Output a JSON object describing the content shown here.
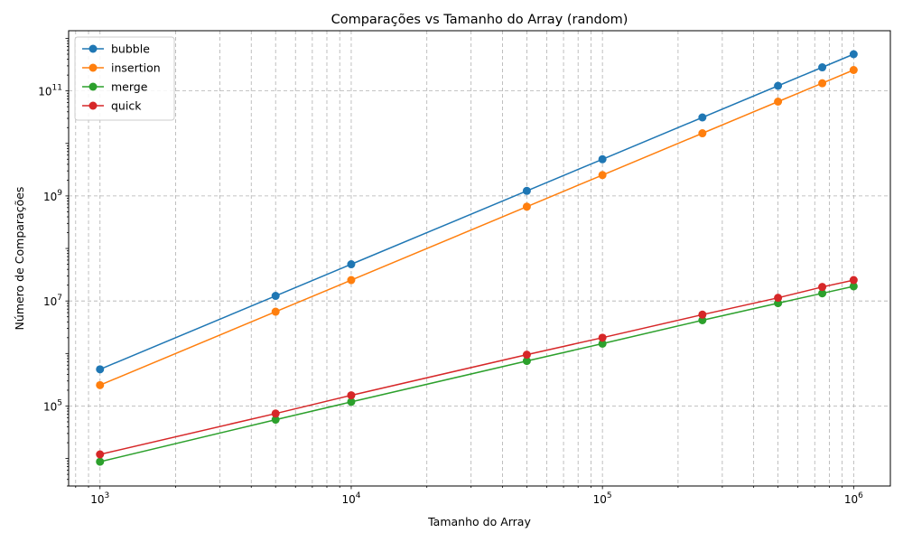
{
  "chart_data": {
    "type": "line",
    "title": "Comparações vs Tamanho do Array (random)",
    "xlabel": "Tamanho do Array",
    "ylabel": "Número de Comparações",
    "x_scale": "log",
    "y_scale": "log",
    "xlim": [
      750,
      1400000
    ],
    "ylim": [
      3000,
      1400000000000
    ],
    "x_ticks": [
      {
        "value": 1000,
        "base": "10",
        "exp": "3"
      },
      {
        "value": 10000,
        "base": "10",
        "exp": "4"
      },
      {
        "value": 100000,
        "base": "10",
        "exp": "5"
      },
      {
        "value": 1000000,
        "base": "10",
        "exp": "6"
      }
    ],
    "y_ticks": [
      {
        "value": 100000,
        "base": "10",
        "exp": "5"
      },
      {
        "value": 10000000,
        "base": "10",
        "exp": "7"
      },
      {
        "value": 1000000000,
        "base": "10",
        "exp": "9"
      },
      {
        "value": 100000000000,
        "base": "10",
        "exp": "11"
      }
    ],
    "grid": true,
    "legend_position": "top-left",
    "x": [
      1000,
      5000,
      10000,
      50000,
      100000,
      250000,
      500000,
      750000,
      1000000
    ],
    "series": [
      {
        "name": "bubble",
        "color": "#1f77b4",
        "values": [
          500000,
          12500000,
          50000000,
          1250000000,
          5000000000,
          31250000000,
          125000000000,
          281000000000,
          500000000000
        ]
      },
      {
        "name": "insertion",
        "color": "#ff7f0e",
        "values": [
          250000,
          6250000,
          25000000,
          625000000,
          2500000000,
          15600000000,
          62500000000,
          140000000000,
          250000000000
        ]
      },
      {
        "name": "merge",
        "color": "#2ca02c",
        "values": [
          8700,
          55000,
          120000,
          720000,
          1540000,
          4300000,
          9100000,
          14000000,
          19000000
        ]
      },
      {
        "name": "quick",
        "color": "#d62728",
        "values": [
          12000,
          72000,
          160000,
          950000,
          2000000,
          5500000,
          11500000,
          18500000,
          25000000
        ]
      }
    ]
  }
}
